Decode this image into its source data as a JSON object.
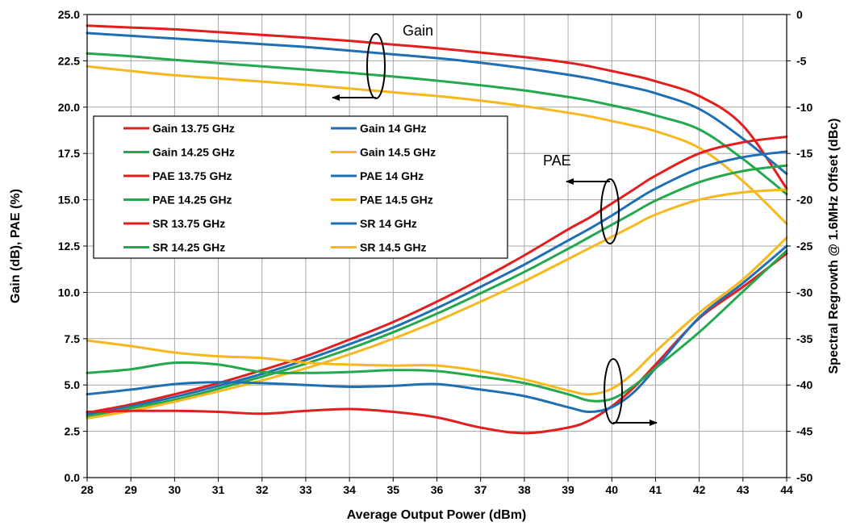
{
  "chart_data": {
    "type": "line",
    "xlabel": "Average Output Power (dBm)",
    "ylabel_left": "Gain (dB), PAE (%)",
    "ylabel_right": "Spectral Regrowth @ 1.6MHz Offset (dBc)",
    "xlim": [
      28,
      44
    ],
    "ylim_left": [
      0,
      25
    ],
    "ylim_right": [
      -50,
      0
    ],
    "x_ticks": [
      "28",
      "29",
      "30",
      "31",
      "32",
      "33",
      "34",
      "35",
      "36",
      "37",
      "38",
      "39",
      "40",
      "41",
      "42",
      "43",
      "44"
    ],
    "y_left_ticks": [
      "0.0",
      "2.5",
      "5.0",
      "7.5",
      "10.0",
      "12.5",
      "15.0",
      "17.5",
      "20.0",
      "22.5",
      "25.0"
    ],
    "y_right_ticks": [
      "0",
      "-5",
      "-10",
      "-15",
      "-20",
      "-25",
      "-30",
      "-35",
      "-40",
      "-45",
      "-50"
    ],
    "grid": true,
    "legend_position": "upper-left",
    "colors": {
      "13.75": "#e41e1e",
      "14": "#1f6fb4",
      "14.25": "#23a84d",
      "14.5": "#f6b81c"
    },
    "annotations": [
      {
        "text": "Gain"
      },
      {
        "text": "PAE"
      }
    ],
    "x": [
      28,
      29,
      30,
      31,
      32,
      33,
      34,
      35,
      36,
      37,
      38,
      39,
      39.5,
      40,
      40.5,
      41,
      42,
      43,
      44
    ],
    "series": [
      {
        "name": "Gain 13.75 GHz",
        "axis": "left",
        "freq": "13.75",
        "values": [
          24.4,
          24.3,
          24.2,
          24.05,
          23.9,
          23.75,
          23.58,
          23.38,
          23.18,
          22.95,
          22.7,
          22.4,
          22.2,
          21.95,
          21.7,
          21.4,
          20.6,
          19.0,
          15.6
        ]
      },
      {
        "name": "Gain 14 GHz",
        "axis": "left",
        "freq": "14",
        "values": [
          24.0,
          23.85,
          23.7,
          23.55,
          23.4,
          23.25,
          23.05,
          22.85,
          22.65,
          22.4,
          22.1,
          21.75,
          21.55,
          21.3,
          21.05,
          20.75,
          19.9,
          18.3,
          16.4
        ]
      },
      {
        "name": "Gain 14.25 GHz",
        "axis": "left",
        "freq": "14.25",
        "values": [
          22.9,
          22.75,
          22.55,
          22.38,
          22.2,
          22.03,
          21.85,
          21.65,
          21.43,
          21.18,
          20.9,
          20.55,
          20.35,
          20.1,
          19.85,
          19.55,
          18.8,
          17.2,
          15.3
        ]
      },
      {
        "name": "Gain 14.5 GHz",
        "axis": "left",
        "freq": "14.5",
        "values": [
          22.2,
          21.95,
          21.72,
          21.55,
          21.38,
          21.2,
          21.0,
          20.8,
          20.6,
          20.35,
          20.05,
          19.7,
          19.5,
          19.25,
          19.0,
          18.7,
          17.8,
          16.0,
          13.7
        ]
      },
      {
        "name": "PAE 13.75 GHz",
        "axis": "left",
        "freq": "13.75",
        "values": [
          3.5,
          3.95,
          4.5,
          5.1,
          5.8,
          6.55,
          7.45,
          8.4,
          9.5,
          10.7,
          12.0,
          13.4,
          14.05,
          14.8,
          15.55,
          16.3,
          17.5,
          18.1,
          18.4
        ]
      },
      {
        "name": "PAE 14 GHz",
        "axis": "left",
        "freq": "14",
        "values": [
          3.4,
          3.85,
          4.35,
          4.95,
          5.6,
          6.35,
          7.2,
          8.1,
          9.15,
          10.3,
          11.5,
          12.8,
          13.45,
          14.15,
          14.9,
          15.6,
          16.7,
          17.3,
          17.6
        ]
      },
      {
        "name": "PAE 14.25 GHz",
        "axis": "left",
        "freq": "14.25",
        "values": [
          3.3,
          3.75,
          4.2,
          4.8,
          5.45,
          6.15,
          6.95,
          7.85,
          8.85,
          9.95,
          11.1,
          12.35,
          13.0,
          13.65,
          14.3,
          14.95,
          15.95,
          16.55,
          16.85
        ]
      },
      {
        "name": "PAE 14.5 GHz",
        "axis": "left",
        "freq": "14.5",
        "values": [
          3.2,
          3.6,
          4.1,
          4.65,
          5.25,
          5.9,
          6.65,
          7.5,
          8.45,
          9.5,
          10.6,
          11.8,
          12.4,
          13.0,
          13.6,
          14.2,
          15.0,
          15.4,
          15.55
        ]
      },
      {
        "name": "SR 13.75 GHz",
        "axis": "right",
        "freq": "13.75",
        "values": [
          -42.9,
          -42.8,
          -42.8,
          -42.9,
          -43.1,
          -42.8,
          -42.6,
          -42.9,
          -43.5,
          -44.6,
          -45.2,
          -44.6,
          -43.8,
          -42.3,
          -40.3,
          -37.8,
          -32.8,
          -29.4,
          -25.8
        ]
      },
      {
        "name": "SR 14 GHz",
        "axis": "right",
        "freq": "14",
        "values": [
          -41.0,
          -40.5,
          -39.9,
          -39.7,
          -39.8,
          -40.0,
          -40.2,
          -40.1,
          -39.9,
          -40.5,
          -41.2,
          -42.4,
          -42.9,
          -42.4,
          -40.8,
          -38.2,
          -32.7,
          -29.0,
          -25.0
        ]
      },
      {
        "name": "SR 14.25 GHz",
        "axis": "right",
        "freq": "14.25",
        "values": [
          -38.7,
          -38.3,
          -37.6,
          -37.8,
          -38.6,
          -38.7,
          -38.6,
          -38.4,
          -38.5,
          -39.1,
          -39.8,
          -41.0,
          -41.7,
          -41.5,
          -40.1,
          -38.2,
          -34.3,
          -29.9,
          -25.5
        ]
      },
      {
        "name": "SR 14.5 GHz",
        "axis": "right",
        "freq": "14.5",
        "values": [
          -35.2,
          -35.8,
          -36.5,
          -36.9,
          -37.1,
          -37.6,
          -37.8,
          -37.9,
          -37.9,
          -38.5,
          -39.4,
          -40.6,
          -41.0,
          -40.4,
          -38.7,
          -36.4,
          -32.2,
          -28.6,
          -24.1
        ]
      }
    ]
  }
}
